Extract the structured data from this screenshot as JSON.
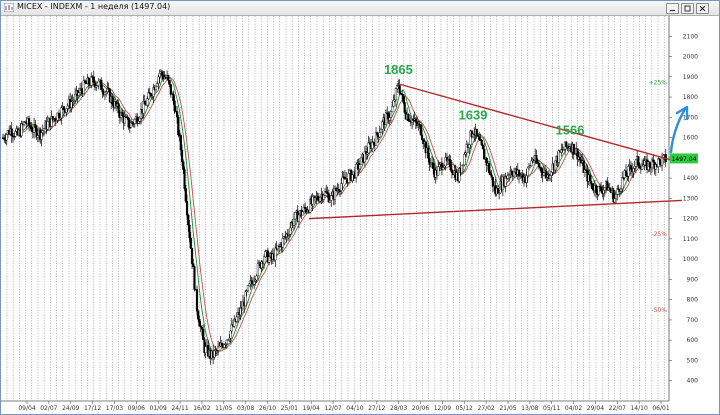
{
  "window": {
    "title": "MICEX - INDEXM - 1 неделя (1497.04)"
  },
  "chart_data": {
    "type": "candlestick",
    "title": "MICEX - INDEXM - 1 неделя (1497.04)",
    "ylim": [
      300,
      2200
    ],
    "y_ticks": [
      400,
      500,
      600,
      700,
      800,
      900,
      1000,
      1100,
      1200,
      1300,
      1400,
      1500,
      1600,
      1700,
      1800,
      1900,
      2000,
      2100
    ],
    "x_ticks": [
      "09/04",
      "02/07",
      "24/09",
      "17/12",
      "17/03",
      "09/06",
      "01/09",
      "24/11",
      "16/02",
      "11/05",
      "03/08",
      "26/10",
      "25/01",
      "19/04",
      "12/07",
      "04/10",
      "27/12",
      "28/03",
      "20/06",
      "12/09",
      "05/12",
      "27/02",
      "21/05",
      "13/08",
      "05/11",
      "04/02",
      "29/04",
      "22/07",
      "14/10",
      "06/01"
    ],
    "last_price": {
      "value": 1497.04,
      "label": "1497.04",
      "color": "#2ecc40"
    },
    "price_series": [
      1600,
      1640,
      1610,
      1680,
      1640,
      1620,
      1670,
      1700,
      1740,
      1770,
      1810,
      1860,
      1880,
      1860,
      1820,
      1760,
      1700,
      1660,
      1700,
      1760,
      1830,
      1920,
      1890,
      1760,
      1500,
      1120,
      760,
      560,
      520,
      560,
      610,
      680,
      760,
      860,
      940,
      1020,
      1000,
      1060,
      1120,
      1200,
      1230,
      1260,
      1300,
      1330,
      1300,
      1360,
      1400,
      1420,
      1480,
      1550,
      1600,
      1680,
      1720,
      1865,
      1720,
      1680,
      1640,
      1500,
      1420,
      1480,
      1460,
      1400,
      1540,
      1639,
      1560,
      1460,
      1330,
      1380,
      1440,
      1420,
      1400,
      1500,
      1450,
      1410,
      1480,
      1540,
      1566,
      1520,
      1430,
      1360,
      1340,
      1360,
      1300,
      1390,
      1440,
      1480,
      1460,
      1470,
      1480,
      1497.04
    ],
    "moving_averages": [
      {
        "color": "#1a8f2e"
      },
      {
        "color": "#c44f4f"
      }
    ],
    "level_markers": [
      {
        "label": "+25%",
        "value": 1871,
        "color": "#2e9e3e"
      },
      {
        "label": "-25%",
        "value": 1123,
        "color": "#c44f4f"
      },
      {
        "label": "-50%",
        "value": 749,
        "color": "#c44f4f"
      }
    ],
    "annotations": [
      {
        "text": "1865",
        "value": 1865,
        "color": "#29a84a"
      },
      {
        "text": "1639",
        "value": 1639,
        "color": "#29a84a"
      },
      {
        "text": "1566",
        "value": 1566,
        "color": "#29a84a"
      }
    ],
    "trendlines": [
      {
        "name": "resistance",
        "color": "#b42828",
        "from": {
          "index": 53,
          "value": 1865
        },
        "to": {
          "index": 90,
          "value": 1485
        }
      },
      {
        "name": "support",
        "color": "#b42828",
        "from": {
          "index": 41,
          "value": 1200
        },
        "to": {
          "index": 91,
          "value": 1290
        }
      }
    ],
    "arrow": {
      "color": "#2d8fd6",
      "direction": "up"
    },
    "grid": true
  }
}
